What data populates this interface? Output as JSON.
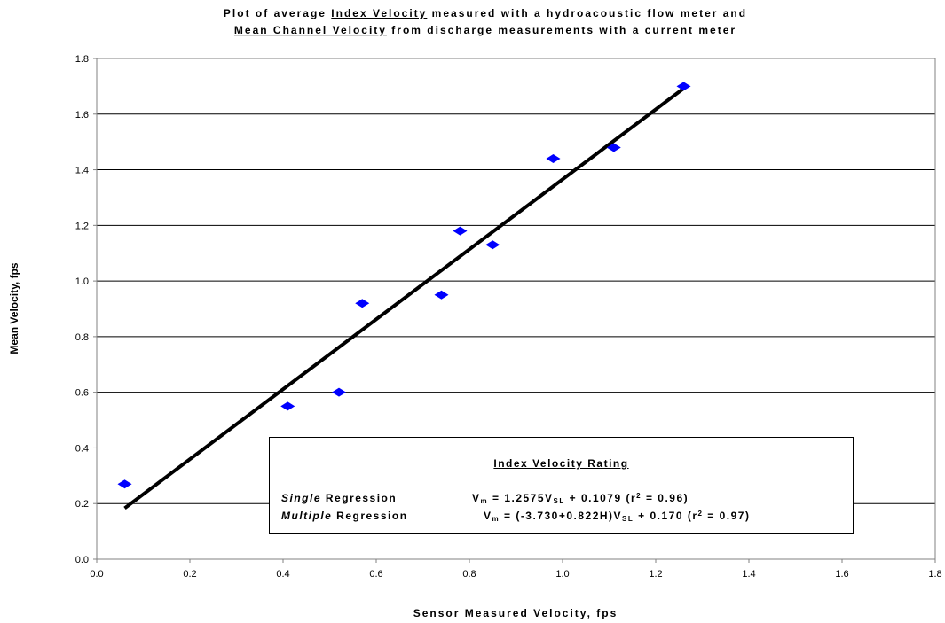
{
  "chart_data": {
    "type": "scatter",
    "title": [
      "Plot of average Index Velocity measured with a hydroacoustic flow meter and",
      "Mean Channel Velocity from discharge measurements with a current meter"
    ],
    "xlabel": "Sensor Measured Velocity, fps",
    "ylabel": "Mean Velocity, fps",
    "xlim": [
      0.0,
      1.8
    ],
    "ylim": [
      0.0,
      1.8
    ],
    "x_ticks": [
      "0.0",
      "0.2",
      "0.4",
      "0.6",
      "0.8",
      "1.0",
      "1.2",
      "1.4",
      "1.6",
      "1.8"
    ],
    "y_ticks": [
      "0.0",
      "0.2",
      "0.4",
      "0.6",
      "0.8",
      "1.0",
      "1.2",
      "1.4",
      "1.6",
      "1.8"
    ],
    "grid": "horizontal",
    "series": [
      {
        "marker": "diamond",
        "color": "#0000ff",
        "points": [
          {
            "x": 0.06,
            "y": 0.27
          },
          {
            "x": 0.41,
            "y": 0.55
          },
          {
            "x": 0.52,
            "y": 0.6
          },
          {
            "x": 0.57,
            "y": 0.92
          },
          {
            "x": 0.74,
            "y": 0.95
          },
          {
            "x": 0.78,
            "y": 1.18
          },
          {
            "x": 0.85,
            "y": 1.13
          },
          {
            "x": 0.98,
            "y": 1.44
          },
          {
            "x": 1.11,
            "y": 1.48
          },
          {
            "x": 1.26,
            "y": 1.7
          }
        ]
      }
    ],
    "regression_line": {
      "slope": 1.2575,
      "intercept": 0.1079,
      "x_range": [
        0.06,
        1.26
      ],
      "color": "#000000"
    },
    "legend": {
      "title": "Index Velocity Rating",
      "single": {
        "name_italic": "Single",
        "name_rest": "Regression",
        "equation_html": "V<sub>m</sub> = 1.2575V<sub>SL</sub> + 0.1079 (r<sup>2</sup> = 0.96)"
      },
      "multiple": {
        "name_italic": "Multiple",
        "name_rest": "Regression",
        "equation_html": "V<sub>m</sub> = (-3.730+0.822H)V<sub>SL</sub> + 0.170 (r<sup>2</sup> = 0.97)"
      }
    }
  }
}
